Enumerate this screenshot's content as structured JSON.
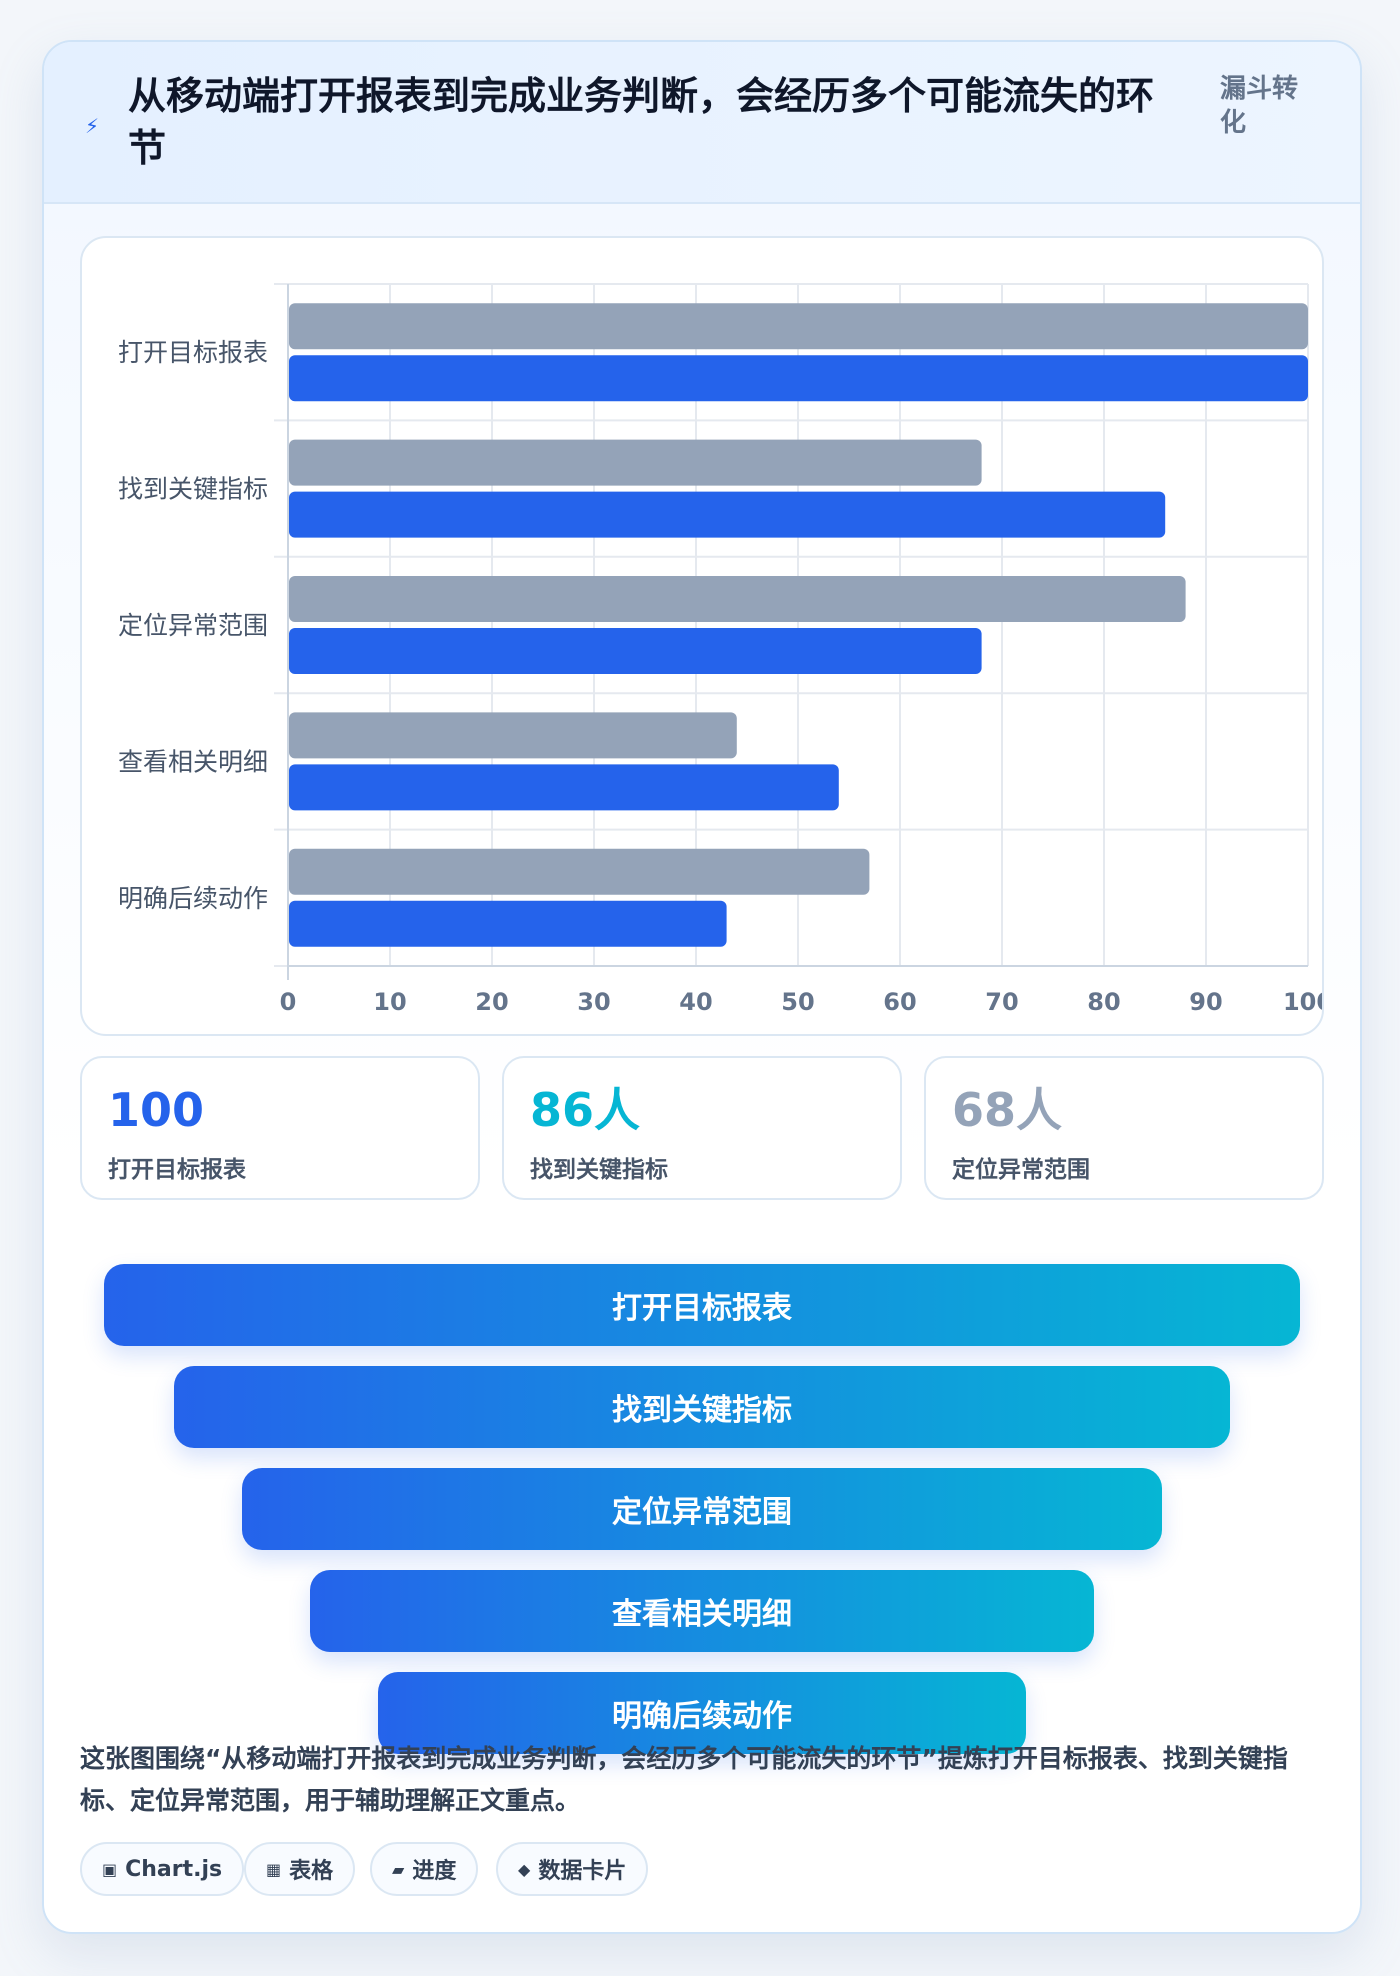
{
  "header": {
    "title": "从移动端打开报表到完成业务判断，会经历多个可能流失的环节",
    "tag": "漏斗转化",
    "icon": "lightning-icon"
  },
  "colors": {
    "series_gray": "#94a3b8",
    "series_blue": "#2563eb",
    "accent_cyan": "#06b6d4",
    "stat_gray": "#94a3b8"
  },
  "chart_data": {
    "type": "bar",
    "orientation": "horizontal",
    "categories": [
      "打开目标报表",
      "找到关键指标",
      "定位异常范围",
      "查看相关明细",
      "明确后续动作"
    ],
    "series": [
      {
        "values": [
          100,
          68,
          88,
          44,
          57
        ]
      },
      {
        "values": [
          100,
          86,
          68,
          54,
          43
        ]
      }
    ],
    "xlim": [
      0,
      100
    ],
    "xticks": [
      0,
      10,
      20,
      30,
      40,
      50,
      60,
      70,
      80,
      90,
      100
    ],
    "grid": true,
    "legend": "none"
  },
  "stats": [
    {
      "value": "100",
      "label": "打开目标报表"
    },
    {
      "value": "86人",
      "label": "找到关键指标"
    },
    {
      "value": "68人",
      "label": "定位异常范围"
    }
  ],
  "funnel": [
    {
      "label": "打开目标报表"
    },
    {
      "label": "找到关键指标"
    },
    {
      "label": "定位异常范围"
    },
    {
      "label": "查看相关明细"
    },
    {
      "label": "明确后续动作"
    }
  ],
  "description": "这张图围绕“从移动端打开报表到完成业务判断，会经历多个可能流失的环节”提炼打开目标报表、找到关键指标、定位异常范围，用于辅助理解正文重点。",
  "chips": [
    {
      "icon": "chart-icon",
      "glyph": "▣",
      "label": "Chart.js"
    },
    {
      "icon": "table-icon",
      "glyph": "▦",
      "label": "表格"
    },
    {
      "icon": "progress-icon",
      "glyph": "▰",
      "label": "进度"
    },
    {
      "icon": "diamond-icon",
      "glyph": "◆",
      "label": "数据卡片"
    }
  ]
}
